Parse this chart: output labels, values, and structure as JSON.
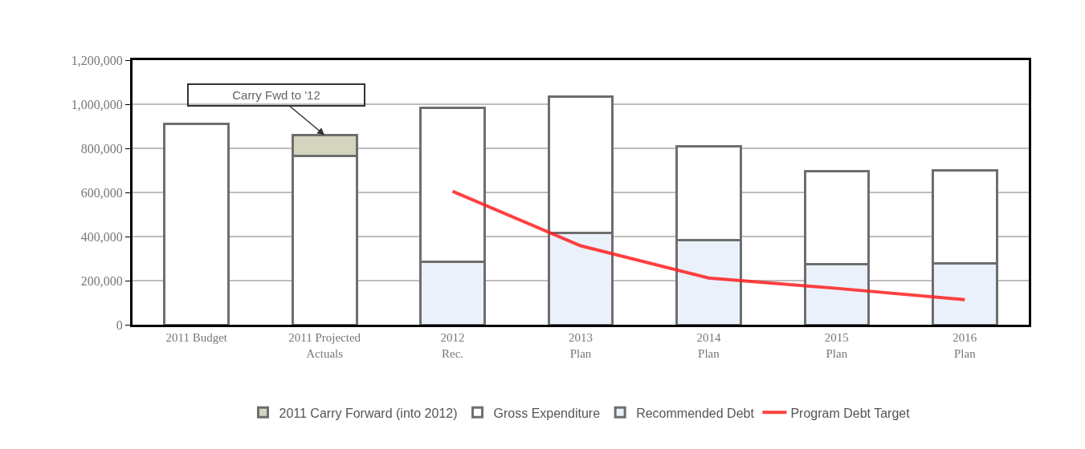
{
  "chart_data": {
    "type": "bar",
    "stacked": true,
    "categories": [
      "2011 Budget",
      "2011 Projected\nActuals",
      "2012\nRec.",
      "2013\nPlan",
      "2014\nPlan",
      "2015\nPlan",
      "2016\nPlan"
    ],
    "series": [
      {
        "name": "Recommended Debt",
        "color": "#eaf1fb",
        "values": [
          null,
          null,
          285000,
          415000,
          385000,
          275000,
          280000
        ]
      },
      {
        "name": "Gross Expenditure",
        "color": "#ffffff",
        "values": [
          910000,
          765000,
          700000,
          620000,
          425000,
          420000,
          420000
        ]
      },
      {
        "name": "2011 Carry Forward (into 2012)",
        "color": "#d4d4bf",
        "values": [
          null,
          95000,
          null,
          null,
          null,
          null,
          null
        ]
      },
      {
        "name": "Program Debt Target",
        "type": "line",
        "color": "#ff2020",
        "values": [
          null,
          null,
          605000,
          358000,
          212000,
          165000,
          114000
        ]
      }
    ],
    "ylim": [
      0,
      1200000
    ],
    "yticks": [
      {
        "value": 0,
        "label": "0"
      },
      {
        "value": 200000,
        "label": "200,000"
      },
      {
        "value": 400000,
        "label": "400,000"
      },
      {
        "value": 600000,
        "label": "600,000"
      },
      {
        "value": 800000,
        "label": "800,000"
      },
      {
        "value": 1000000,
        "label": "1,000,000"
      },
      {
        "value": 1200000,
        "label": "1,200,000"
      }
    ],
    "grid": "y",
    "legend": "bottom",
    "annotations": [
      {
        "text": "Carry Fwd to '12",
        "x": "2011 Projected\nActuals",
        "y": 860000
      }
    ]
  }
}
